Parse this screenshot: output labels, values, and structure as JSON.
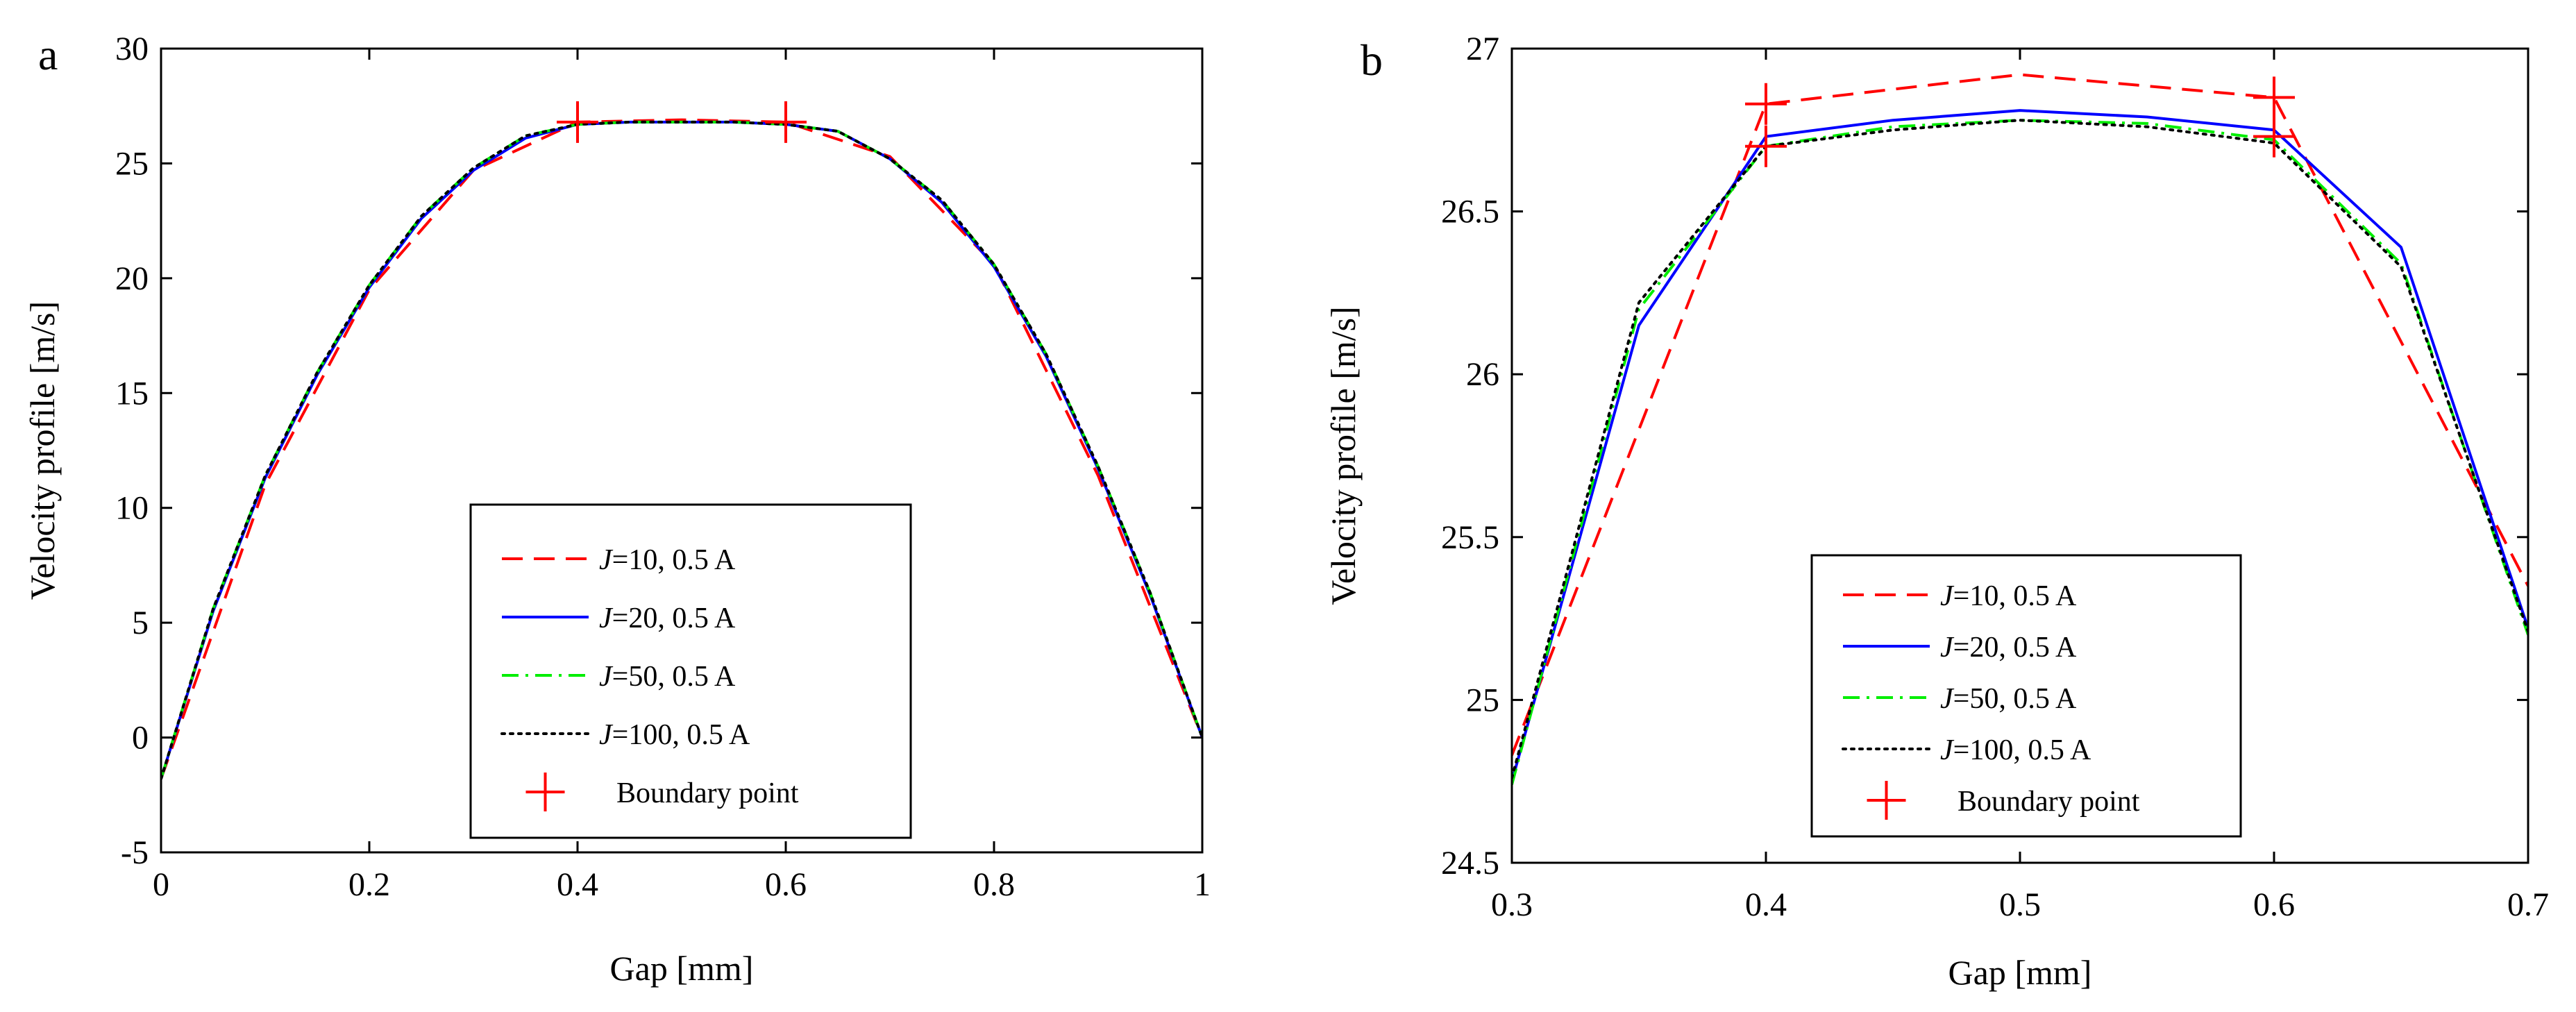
{
  "chart_data": [
    {
      "type": "line",
      "panel_label": "a",
      "xlabel": "Gap [mm]",
      "ylabel": "Velocity profile [m/s]",
      "xlim": [
        0,
        1
      ],
      "ylim": [
        -5,
        30
      ],
      "xticks": [
        0,
        0.2,
        0.4,
        0.6,
        0.8,
        1
      ],
      "xtick_labels": [
        "0",
        "0.2",
        "0.4",
        "0.6",
        "0.8",
        "1"
      ],
      "yticks": [
        -5,
        0,
        5,
        10,
        15,
        20,
        25,
        30
      ],
      "ytick_labels": [
        "-5",
        "0",
        "5",
        "10",
        "15",
        "20",
        "25",
        "30"
      ],
      "legend_position": "bottom-center",
      "series": [
        {
          "name": "J=10, 0.5 A",
          "label_var": "J",
          "label_rest": "=10, 0.5 A",
          "color": "#ff0000",
          "style": "dashed",
          "x": [
            0,
            0.1,
            0.2,
            0.3,
            0.4,
            0.5,
            0.6,
            0.7,
            0.8,
            0.9,
            1.0
          ],
          "y": [
            -1.8,
            11.0,
            19.5,
            24.7,
            26.8,
            26.9,
            26.8,
            25.3,
            20.6,
            11.4,
            0.0
          ]
        },
        {
          "name": "J=20, 0.5 A",
          "label_var": "J",
          "label_rest": "=20, 0.5 A",
          "color": "#0000ff",
          "style": "solid",
          "x": [
            0,
            0.05,
            0.1,
            0.15,
            0.2,
            0.25,
            0.3,
            0.35,
            0.4,
            0.45,
            0.5,
            0.55,
            0.6,
            0.65,
            0.7,
            0.75,
            0.8,
            0.85,
            0.9,
            0.95,
            1.0
          ],
          "y": [
            -1.8,
            5.5,
            11.3,
            15.8,
            19.6,
            22.6,
            24.7,
            26.1,
            26.7,
            26.8,
            26.8,
            26.8,
            26.7,
            26.4,
            25.2,
            23.3,
            20.5,
            16.6,
            11.7,
            6.2,
            0.0
          ]
        },
        {
          "name": "J=50, 0.5 A",
          "label_var": "J",
          "label_rest": "=50, 0.5 A",
          "color": "#00ee00",
          "style": "dashdot",
          "x": [
            0,
            0.05,
            0.1,
            0.15,
            0.2,
            0.25,
            0.3,
            0.35,
            0.4,
            0.45,
            0.5,
            0.55,
            0.6,
            0.65,
            0.7,
            0.75,
            0.8,
            0.85,
            0.9,
            0.95,
            1.0
          ],
          "y": [
            -1.8,
            5.6,
            11.4,
            15.9,
            19.7,
            22.7,
            24.8,
            26.2,
            26.7,
            26.8,
            26.8,
            26.8,
            26.7,
            26.4,
            25.2,
            23.4,
            20.6,
            16.7,
            11.8,
            6.3,
            0.0
          ]
        },
        {
          "name": "J=100, 0.5 A",
          "label_var": "J",
          "label_rest": "=100, 0.5 A",
          "color": "#000000",
          "style": "dotted",
          "x": [
            0,
            0.05,
            0.1,
            0.15,
            0.2,
            0.25,
            0.3,
            0.35,
            0.4,
            0.45,
            0.5,
            0.55,
            0.6,
            0.65,
            0.7,
            0.75,
            0.8,
            0.85,
            0.9,
            0.95,
            1.0
          ],
          "y": [
            -1.8,
            5.6,
            11.4,
            15.9,
            19.7,
            22.7,
            24.8,
            26.2,
            26.7,
            26.8,
            26.8,
            26.8,
            26.7,
            26.4,
            25.2,
            23.4,
            20.6,
            16.7,
            11.8,
            6.3,
            0.0
          ]
        }
      ],
      "boundary_points": {
        "name": "Boundary point",
        "color": "#ff0000",
        "x": [
          0.4,
          0.6
        ],
        "y": [
          26.8,
          26.8
        ]
      }
    },
    {
      "type": "line",
      "panel_label": "b",
      "xlabel": "Gap [mm]",
      "ylabel": "Velocity profile [m/s]",
      "xlim": [
        0.3,
        0.7
      ],
      "ylim": [
        24.5,
        27
      ],
      "xticks": [
        0.3,
        0.4,
        0.5,
        0.6,
        0.7
      ],
      "xtick_labels": [
        "0.3",
        "0.4",
        "0.5",
        "0.6",
        "0.7"
      ],
      "yticks": [
        24.5,
        25,
        25.5,
        26,
        26.5,
        27
      ],
      "ytick_labels": [
        "24.5",
        "25",
        "25.5",
        "26",
        "26.5",
        "27"
      ],
      "legend_position": "bottom-center",
      "series": [
        {
          "name": "J=10, 0.5 A",
          "label_var": "J",
          "label_rest": "=10, 0.5 A",
          "color": "#ff0000",
          "style": "dashed",
          "x": [
            0.3,
            0.4,
            0.5,
            0.6,
            0.7
          ],
          "y": [
            24.83,
            26.83,
            26.92,
            26.85,
            25.35
          ]
        },
        {
          "name": "J=20, 0.5 A",
          "label_var": "J",
          "label_rest": "=20, 0.5 A",
          "color": "#0000ff",
          "style": "solid",
          "x": [
            0.3,
            0.35,
            0.4,
            0.45,
            0.5,
            0.55,
            0.6,
            0.65,
            0.7
          ],
          "y": [
            24.75,
            26.15,
            26.73,
            26.78,
            26.81,
            26.79,
            26.75,
            26.39,
            25.22
          ]
        },
        {
          "name": "J=50, 0.5 A",
          "label_var": "J",
          "label_rest": "=50, 0.5 A",
          "color": "#00ee00",
          "style": "dashdot",
          "x": [
            0.3,
            0.35,
            0.4,
            0.45,
            0.5,
            0.55,
            0.6,
            0.65,
            0.7
          ],
          "y": [
            24.74,
            26.2,
            26.7,
            26.76,
            26.78,
            26.77,
            26.72,
            26.34,
            25.2
          ]
        },
        {
          "name": "J=100, 0.5 A",
          "label_var": "J",
          "label_rest": "=100, 0.5 A",
          "color": "#000000",
          "style": "dotted",
          "x": [
            0.3,
            0.35,
            0.4,
            0.45,
            0.5,
            0.55,
            0.6,
            0.65,
            0.7
          ],
          "y": [
            24.76,
            26.22,
            26.7,
            26.75,
            26.78,
            26.76,
            26.71,
            26.33,
            25.21
          ]
        }
      ],
      "boundary_points": {
        "name": "Boundary point",
        "color": "#ff0000",
        "x": [
          0.4,
          0.6,
          0.4,
          0.6
        ],
        "y": [
          26.83,
          26.85,
          26.7,
          26.73
        ]
      }
    }
  ]
}
